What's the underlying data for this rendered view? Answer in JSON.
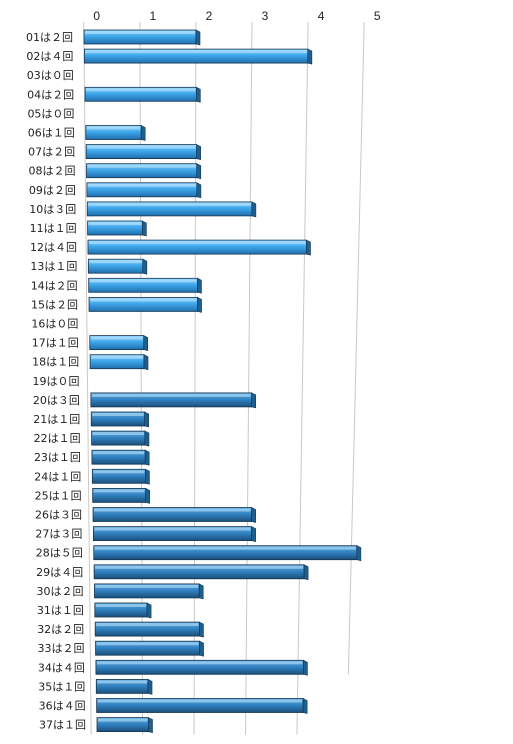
{
  "chart_data": {
    "type": "bar",
    "orientation": "horizontal",
    "categories": [
      "01は２回",
      "02は４回",
      "03は０回",
      "04は２回",
      "05は０回",
      "06は１回",
      "07は２回",
      "08は２回",
      "09は２回",
      "10は３回",
      "11は１回",
      "12は４回",
      "13は１回",
      "14は２回",
      "15は２回",
      "16は０回",
      "17は１回",
      "18は１回",
      "19は０回",
      "20は３回",
      "21は１回",
      "22は１回",
      "23は１回",
      "24は１回",
      "25は１回",
      "26は３回",
      "27は３回",
      "28は５回",
      "29は４回",
      "30は２回",
      "31は１回",
      "32は２回",
      "33は２回",
      "34は４回",
      "35は１回",
      "36は４回",
      "37は１回"
    ],
    "values": [
      2,
      4,
      0,
      2,
      0,
      1,
      2,
      2,
      2,
      3,
      1,
      4,
      1,
      2,
      2,
      0,
      1,
      1,
      0,
      3,
      1,
      1,
      1,
      1,
      1,
      3,
      3,
      5,
      4,
      2,
      1,
      2,
      2,
      4,
      1,
      4,
      1
    ],
    "x_ticks": [
      "0",
      "1",
      "2",
      "3",
      "4",
      "5"
    ],
    "xlim": [
      0,
      5
    ],
    "grid": true,
    "colors": {
      "bar_light": "#4db0ec",
      "bar_mid": "#2f95d8",
      "bar_dark": "#1f5f8e",
      "bar_edge": "#16354f"
    }
  }
}
